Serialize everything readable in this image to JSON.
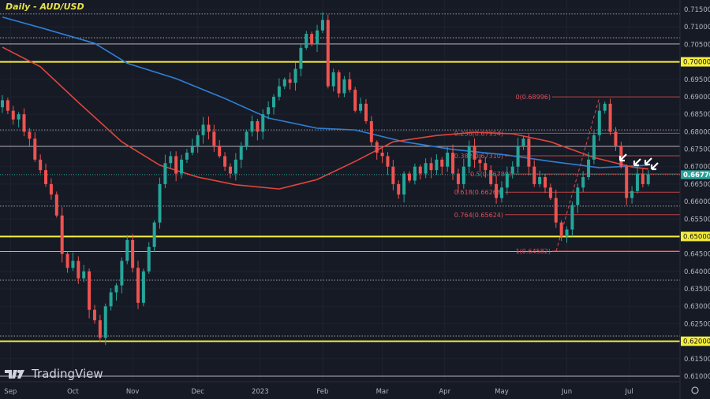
{
  "title": "Daily - AUD/USD",
  "watermark": "TradingView",
  "colors": {
    "background": "#161a25",
    "up": "#26a69a",
    "down": "#ef5350",
    "ma_blue": "#2f7fd6",
    "ma_red": "#e0463c",
    "support": "#f5ee3a",
    "fib": "#d84a4a",
    "current_price": "#26a69a"
  },
  "chart_data": {
    "type": "candlestick",
    "instrument": "AUD/USD",
    "timeframe": "Daily",
    "ylim": [
      0.6075,
      0.7165
    ],
    "y_ticks": [
      "0.61000",
      "0.61500",
      "0.62000",
      "0.62500",
      "0.63000",
      "0.63500",
      "0.64000",
      "0.64500",
      "0.65000",
      "0.65500",
      "0.66000",
      "0.66500",
      "0.67000",
      "0.67500",
      "0.68000",
      "0.68500",
      "0.69000",
      "0.69500",
      "0.70000",
      "0.70500",
      "0.71000",
      "0.71500"
    ],
    "x_labels": [
      {
        "label": "Sep",
        "at_candle": 1.5
      },
      {
        "label": "Oct",
        "at_candle": 13
      },
      {
        "label": "Nov",
        "at_candle": 24
      },
      {
        "label": "Dec",
        "at_candle": 36
      },
      {
        "label": "2023",
        "at_candle": 47.5
      },
      {
        "label": "Feb",
        "at_candle": 59
      },
      {
        "label": "Mar",
        "at_candle": 70
      },
      {
        "label": "Apr",
        "at_candle": 81.5
      },
      {
        "label": "May",
        "at_candle": 92
      },
      {
        "label": "Jun",
        "at_candle": 104
      },
      {
        "label": "Jul",
        "at_candle": 115.5
      }
    ],
    "closes": [
      0.689,
      0.686,
      0.6835,
      0.685,
      0.68,
      0.678,
      0.672,
      0.669,
      0.665,
      0.662,
      0.656,
      0.645,
      0.641,
      0.643,
      0.638,
      0.64,
      0.629,
      0.626,
      0.621,
      0.63,
      0.634,
      0.636,
      0.643,
      0.649,
      0.641,
      0.631,
      0.64,
      0.647,
      0.654,
      0.665,
      0.671,
      0.673,
      0.668,
      0.672,
      0.674,
      0.676,
      0.679,
      0.682,
      0.68,
      0.676,
      0.673,
      0.67,
      0.668,
      0.672,
      0.676,
      0.68,
      0.683,
      0.68,
      0.685,
      0.687,
      0.69,
      0.693,
      0.695,
      0.694,
      0.698,
      0.704,
      0.708,
      0.705,
      0.709,
      0.712,
      0.693,
      0.697,
      0.691,
      0.695,
      0.692,
      0.686,
      0.688,
      0.683,
      0.677,
      0.674,
      0.673,
      0.67,
      0.665,
      0.662,
      0.668,
      0.666,
      0.67,
      0.668,
      0.671,
      0.669,
      0.672,
      0.67,
      0.674,
      0.668,
      0.665,
      0.67,
      0.676,
      0.672,
      0.671,
      0.669,
      0.665,
      0.661,
      0.664,
      0.668,
      0.67,
      0.676,
      0.678,
      0.67,
      0.665,
      0.667,
      0.664,
      0.661,
      0.654,
      0.65,
      0.652,
      0.659,
      0.664,
      0.667,
      0.672,
      0.679,
      0.686,
      0.688,
      0.68,
      0.676,
      0.67,
      0.661,
      0.663,
      0.668,
      0.665,
      0.6677
    ],
    "moving_averages": [
      {
        "color": "blue",
        "points": [
          [
            0,
            0.7128
          ],
          [
            7,
            0.7098
          ],
          [
            17,
            0.7053
          ],
          [
            23,
            0.6996
          ],
          [
            32,
            0.6952
          ],
          [
            41,
            0.6895
          ],
          [
            49,
            0.6839
          ],
          [
            58,
            0.681
          ],
          [
            65,
            0.6805
          ],
          [
            74,
            0.6771
          ],
          [
            83,
            0.6749
          ],
          [
            93,
            0.6733
          ],
          [
            101,
            0.6715
          ],
          [
            110,
            0.6697
          ],
          [
            119,
            0.6704
          ]
        ]
      },
      {
        "color": "red",
        "points": [
          [
            0,
            0.7042
          ],
          [
            7,
            0.6986
          ],
          [
            14,
            0.6884
          ],
          [
            22,
            0.6771
          ],
          [
            29,
            0.6704
          ],
          [
            36,
            0.667
          ],
          [
            43,
            0.6648
          ],
          [
            51,
            0.6636
          ],
          [
            58,
            0.6663
          ],
          [
            65,
            0.6715
          ],
          [
            72,
            0.6771
          ],
          [
            80,
            0.6789
          ],
          [
            87,
            0.6798
          ],
          [
            94,
            0.6794
          ],
          [
            101,
            0.6771
          ],
          [
            109,
            0.6726
          ],
          [
            116,
            0.6699
          ],
          [
            119,
            0.6693
          ]
        ]
      }
    ],
    "support_levels": [
      0.7,
      0.65,
      0.62
    ],
    "reference_lines": [
      {
        "price": 0.7137,
        "style": "dotted"
      },
      {
        "price": 0.7069,
        "style": "dotted"
      },
      {
        "price": 0.7051,
        "style": "solid"
      },
      {
        "price": 0.6805,
        "style": "dotted"
      },
      {
        "price": 0.6758,
        "style": "solid"
      },
      {
        "price": 0.6587,
        "style": "dotted"
      },
      {
        "price": 0.6457,
        "style": "solid"
      },
      {
        "price": 0.6375,
        "style": "dotted"
      },
      {
        "price": 0.6215,
        "style": "dotted"
      },
      {
        "price": 0.61,
        "style": "solid"
      }
    ],
    "fibonacci": [
      {
        "label": "0(0.68996)",
        "price": 0.68996
      },
      {
        "label": "0.236(0.67954)",
        "price": 0.67954
      },
      {
        "label": "0.382(0.67310)",
        "price": 0.6731
      },
      {
        "label": "0.5(0.66789)",
        "price": 0.66789
      },
      {
        "label": "0.618(0.66268)",
        "price": 0.66268
      },
      {
        "label": "0.764(0.65624)",
        "price": 0.65624
      },
      {
        "label": "1(0.64582)",
        "price": 0.64582
      }
    ],
    "current_price": "0.66770",
    "support_labels": [
      "0.70000",
      "0.65000",
      "0.62000"
    ]
  }
}
